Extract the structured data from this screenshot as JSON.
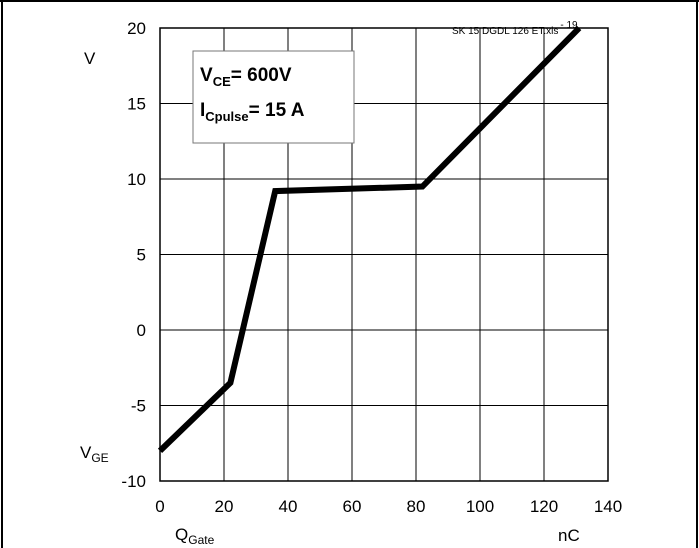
{
  "chart_data": {
    "type": "line",
    "source_file": "SK 15 DGDL 126 ET.xls",
    "figure_number": "- 19",
    "x": [
      0,
      22,
      36,
      82,
      131
    ],
    "y": [
      -8,
      -3.5,
      9.2,
      9.5,
      20
    ],
    "xlim": [
      0,
      140
    ],
    "ylim": [
      -10,
      20
    ],
    "xticks": [
      "0",
      "20",
      "40",
      "60",
      "80",
      "100",
      "120",
      "140"
    ],
    "yticks": [
      "20",
      "15",
      "10",
      "5",
      "0",
      "-5",
      "-10"
    ],
    "xlabel": {
      "main": "Q",
      "sub": "Gate"
    },
    "xunit": "nC",
    "ylabel": {
      "main": "V",
      "sub": "GE"
    },
    "yunit": "V",
    "grid": true,
    "series_color": "#000000",
    "annotation": {
      "line1": {
        "main": "V",
        "sub": "CE",
        "rest": "= 600V"
      },
      "line2": {
        "main": "I",
        "sub": "Cpulse",
        "rest": "= 15 A"
      }
    }
  }
}
